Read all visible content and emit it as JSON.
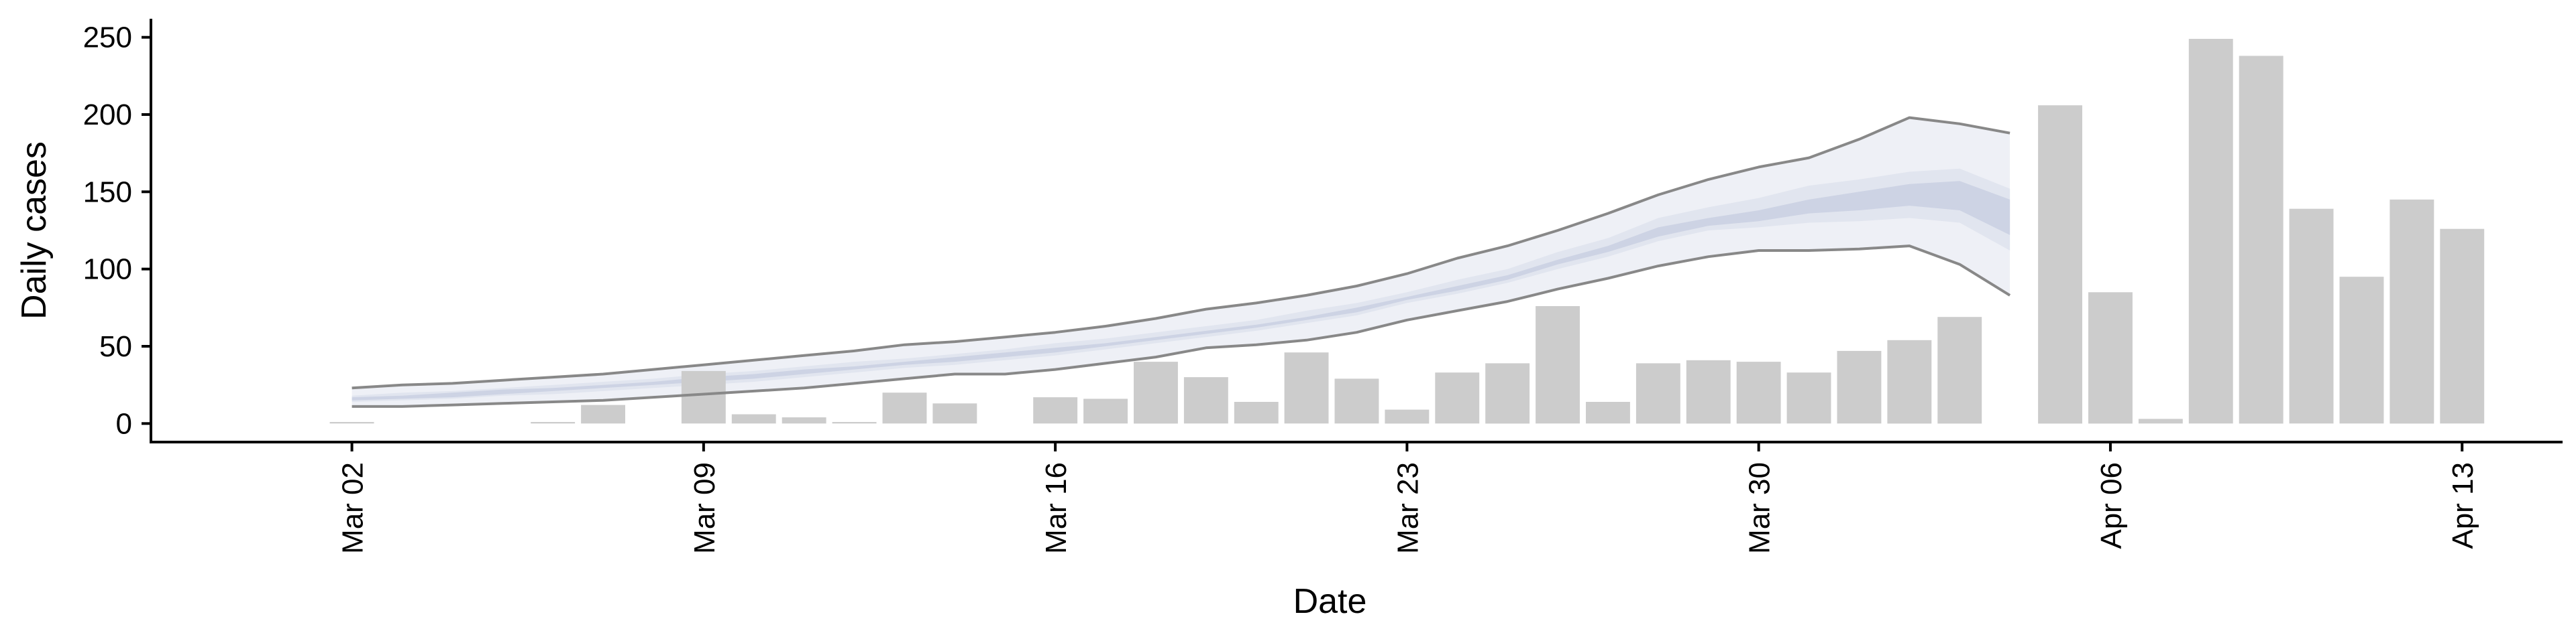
{
  "chart_data": {
    "type": "bar",
    "xlabel": "Date",
    "ylabel": "Daily cases",
    "ylim": [
      -12,
      262
    ],
    "yticks": [
      0,
      50,
      100,
      150,
      200,
      250
    ],
    "x_range": [
      "2020-02-27",
      "2020-04-15"
    ],
    "xticks": [
      {
        "date": "2020-03-02",
        "label": "Mar 02"
      },
      {
        "date": "2020-03-09",
        "label": "Mar 09"
      },
      {
        "date": "2020-03-16",
        "label": "Mar 16"
      },
      {
        "date": "2020-03-23",
        "label": "Mar 23"
      },
      {
        "date": "2020-03-30",
        "label": "Mar 30"
      },
      {
        "date": "2020-04-06",
        "label": "Apr 06"
      },
      {
        "date": "2020-04-13",
        "label": "Apr 13"
      }
    ],
    "dates": [
      "2020-03-02",
      "2020-03-03",
      "2020-03-04",
      "2020-03-05",
      "2020-03-06",
      "2020-03-07",
      "2020-03-08",
      "2020-03-09",
      "2020-03-10",
      "2020-03-11",
      "2020-03-12",
      "2020-03-13",
      "2020-03-14",
      "2020-03-15",
      "2020-03-16",
      "2020-03-17",
      "2020-03-18",
      "2020-03-19",
      "2020-03-20",
      "2020-03-21",
      "2020-03-22",
      "2020-03-23",
      "2020-03-24",
      "2020-03-25",
      "2020-03-26",
      "2020-03-27",
      "2020-03-28",
      "2020-03-29",
      "2020-03-30",
      "2020-03-31",
      "2020-04-01",
      "2020-04-02",
      "2020-04-03",
      "2020-04-04",
      "2020-04-05",
      "2020-04-06",
      "2020-04-07",
      "2020-04-08",
      "2020-04-09",
      "2020-04-10",
      "2020-04-11",
      "2020-04-12",
      "2020-04-13"
    ],
    "daily_cases": [
      1,
      null,
      null,
      null,
      1,
      12,
      null,
      34,
      6,
      4,
      1,
      20,
      13,
      null,
      17,
      16,
      40,
      30,
      14,
      46,
      29,
      9,
      33,
      39,
      76,
      14,
      39,
      41,
      40,
      33,
      47,
      54,
      69,
      null,
      206,
      85,
      3,
      249,
      238,
      139,
      95,
      145,
      126
    ],
    "projection": {
      "dates": [
        "2020-03-02",
        "2020-03-03",
        "2020-03-04",
        "2020-03-05",
        "2020-03-06",
        "2020-03-07",
        "2020-03-08",
        "2020-03-09",
        "2020-03-10",
        "2020-03-11",
        "2020-03-12",
        "2020-03-13",
        "2020-03-14",
        "2020-03-15",
        "2020-03-16",
        "2020-03-17",
        "2020-03-18",
        "2020-03-19",
        "2020-03-20",
        "2020-03-21",
        "2020-03-22",
        "2020-03-23",
        "2020-03-24",
        "2020-03-25",
        "2020-03-26",
        "2020-03-27",
        "2020-03-28",
        "2020-03-29",
        "2020-03-30",
        "2020-03-31",
        "2020-04-01",
        "2020-04-02",
        "2020-04-03",
        "2020-04-04"
      ],
      "upper": [
        23,
        25,
        26,
        28,
        30,
        32,
        35,
        38,
        41,
        44,
        47,
        51,
        53,
        56,
        59,
        63,
        68,
        74,
        78,
        83,
        89,
        97,
        107,
        115,
        125,
        136,
        148,
        158,
        166,
        172,
        184,
        198,
        194,
        188
      ],
      "lower": [
        11,
        11,
        12,
        13,
        14,
        15,
        17,
        19,
        21,
        23,
        26,
        29,
        32,
        32,
        35,
        39,
        43,
        49,
        51,
        54,
        59,
        67,
        73,
        79,
        87,
        94,
        102,
        108,
        112,
        112,
        113,
        115,
        103,
        83
      ],
      "inner_upper": [
        18,
        20,
        21,
        23,
        25,
        27,
        29,
        32,
        34,
        37,
        40,
        42,
        45,
        48,
        52,
        55,
        59,
        63,
        67,
        73,
        78,
        85,
        93,
        100,
        111,
        120,
        133,
        140,
        146,
        154,
        158,
        163,
        165,
        152
      ],
      "inner_lower": [
        14,
        15,
        16,
        18,
        19,
        21,
        23,
        25,
        27,
        30,
        33,
        36,
        38,
        41,
        44,
        48,
        52,
        56,
        60,
        65,
        70,
        78,
        84,
        91,
        100,
        108,
        118,
        125,
        127,
        130,
        131,
        133,
        130,
        112
      ],
      "core_upper": [
        17,
        18,
        20,
        22,
        23,
        25,
        27,
        30,
        32,
        35,
        37,
        40,
        43,
        46,
        49,
        52,
        56,
        60,
        64,
        69,
        75,
        82,
        89,
        96,
        106,
        115,
        127,
        133,
        138,
        145,
        150,
        155,
        157,
        145
      ],
      "core_lower": [
        15,
        16,
        17,
        19,
        21,
        23,
        25,
        27,
        29,
        32,
        35,
        38,
        40,
        43,
        46,
        50,
        54,
        58,
        62,
        67,
        72,
        80,
        86,
        93,
        103,
        111,
        121,
        128,
        131,
        136,
        138,
        141,
        138,
        122
      ]
    },
    "colors": {
      "bar": "#cccccc",
      "outer_band": "#eef0f6",
      "mid_band": "#e1e5ef",
      "core_band": "#cdd3e4",
      "bound_line": "#888888",
      "axis": "#000000"
    },
    "grid": false,
    "legend": "none"
  }
}
